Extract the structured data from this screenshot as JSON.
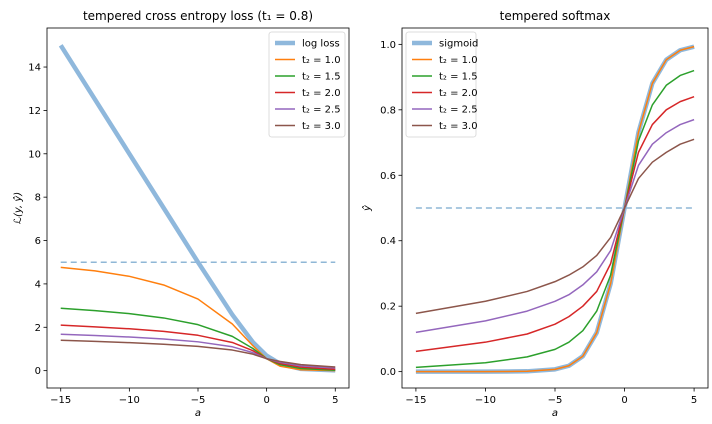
{
  "chart_data": [
    {
      "type": "line",
      "title": "tempered cross entropy loss (t₁ = 0.8)",
      "xlabel": "a",
      "ylabel": "ℒ(y, ŷ)",
      "xlim": [
        -16.0,
        6.0
      ],
      "ylim": [
        -0.8,
        15.8
      ],
      "xticks": [
        -15,
        -10,
        -5,
        0,
        5
      ],
      "yticks": [
        0,
        2,
        4,
        6,
        8,
        10,
        12,
        14
      ],
      "legend_position": "top-right",
      "reference_line": {
        "y": 5.0,
        "x_range": [
          -15,
          5
        ],
        "style": "dashed",
        "color": "#8fb7d6"
      },
      "series": [
        {
          "name": "log loss",
          "color": "#8fb8dc",
          "width": 4.5,
          "x": [
            -15,
            -12.5,
            -10,
            -7.5,
            -5,
            -2.5,
            -1,
            0,
            1,
            2.5,
            5
          ],
          "y": [
            15.0,
            12.5,
            10.0,
            7.5,
            5.0,
            2.58,
            1.31,
            0.69,
            0.31,
            0.08,
            0.01
          ]
        },
        {
          "name": "t₂ = 1.0",
          "color": "#ff7f0e",
          "width": 1.5,
          "x": [
            -15,
            -12.5,
            -10,
            -7.5,
            -5,
            -2.5,
            -1,
            0,
            1,
            2.5,
            5
          ],
          "y": [
            4.76,
            4.6,
            4.35,
            3.95,
            3.3,
            2.15,
            1.15,
            0.55,
            0.2,
            0.04,
            0.0
          ]
        },
        {
          "name": "t₂ = 1.5",
          "color": "#2ca02c",
          "width": 1.5,
          "x": [
            -15,
            -12.5,
            -10,
            -7.5,
            -5,
            -2.5,
            -1,
            0,
            1,
            2.5,
            5
          ],
          "y": [
            2.88,
            2.77,
            2.63,
            2.43,
            2.12,
            1.58,
            1.02,
            0.55,
            0.27,
            0.1,
            0.02
          ]
        },
        {
          "name": "t₂ = 2.0",
          "color": "#d62728",
          "width": 1.5,
          "x": [
            -15,
            -12.5,
            -10,
            -7.5,
            -5,
            -2.5,
            -1,
            0,
            1,
            2.5,
            5
          ],
          "y": [
            2.1,
            2.02,
            1.93,
            1.81,
            1.63,
            1.3,
            0.92,
            0.55,
            0.33,
            0.16,
            0.06
          ]
        },
        {
          "name": "t₂ = 2.5",
          "color": "#9467bd",
          "width": 1.5,
          "x": [
            -15,
            -12.5,
            -10,
            -7.5,
            -5,
            -2.5,
            -1,
            0,
            1,
            2.5,
            5
          ],
          "y": [
            1.68,
            1.62,
            1.55,
            1.46,
            1.33,
            1.1,
            0.83,
            0.55,
            0.38,
            0.22,
            0.12
          ]
        },
        {
          "name": "t₂ = 3.0",
          "color": "#8c564b",
          "width": 1.5,
          "x": [
            -15,
            -12.5,
            -10,
            -7.5,
            -5,
            -2.5,
            -1,
            0,
            1,
            2.5,
            5
          ],
          "y": [
            1.4,
            1.35,
            1.29,
            1.22,
            1.12,
            0.95,
            0.76,
            0.55,
            0.42,
            0.28,
            0.17
          ]
        }
      ]
    },
    {
      "type": "line",
      "title": "tempered softmax",
      "xlabel": "a",
      "ylabel": "ŷ",
      "xlim": [
        -16.0,
        6.0
      ],
      "ylim": [
        -0.05,
        1.05
      ],
      "xticks": [
        -15,
        -10,
        -5,
        0,
        5
      ],
      "yticks": [
        0.0,
        0.2,
        0.4,
        0.6,
        0.8,
        1.0
      ],
      "legend_position": "top-left",
      "reference_line": {
        "y": 0.5,
        "x_range": [
          -15,
          5
        ],
        "style": "dashed",
        "color": "#8fb7d6"
      },
      "series": [
        {
          "name": "sigmoid",
          "color": "#8fb8dc",
          "width": 4.5,
          "x": [
            -15,
            -10,
            -7,
            -5,
            -4,
            -3,
            -2,
            -1,
            0,
            1,
            2,
            3,
            4,
            5
          ],
          "y": [
            0.0,
            0.0,
            0.001,
            0.007,
            0.018,
            0.047,
            0.119,
            0.269,
            0.5,
            0.731,
            0.881,
            0.953,
            0.982,
            0.993
          ]
        },
        {
          "name": "t₂ = 1.0",
          "color": "#ff7f0e",
          "width": 1.5,
          "x": [
            -15,
            -10,
            -7,
            -5,
            -4,
            -3,
            -2,
            -1,
            0,
            1,
            2,
            3,
            4,
            5
          ],
          "y": [
            0.0,
            0.0,
            0.001,
            0.007,
            0.018,
            0.047,
            0.119,
            0.269,
            0.5,
            0.731,
            0.881,
            0.953,
            0.982,
            0.993
          ]
        },
        {
          "name": "t₂ = 1.5",
          "color": "#2ca02c",
          "width": 1.5,
          "x": [
            -15,
            -10,
            -7,
            -5,
            -4,
            -3,
            -2,
            -1,
            0,
            1,
            2,
            3,
            4,
            5
          ],
          "y": [
            0.013,
            0.027,
            0.045,
            0.068,
            0.09,
            0.125,
            0.185,
            0.295,
            0.5,
            0.705,
            0.815,
            0.875,
            0.905,
            0.92
          ]
        },
        {
          "name": "t₂ = 2.0",
          "color": "#d62728",
          "width": 1.5,
          "x": [
            -15,
            -10,
            -7,
            -5,
            -4,
            -3,
            -2,
            -1,
            0,
            1,
            2,
            3,
            4,
            5
          ],
          "y": [
            0.062,
            0.09,
            0.115,
            0.145,
            0.168,
            0.2,
            0.245,
            0.33,
            0.5,
            0.67,
            0.755,
            0.8,
            0.825,
            0.84
          ]
        },
        {
          "name": "t₂ = 2.5",
          "color": "#9467bd",
          "width": 1.5,
          "x": [
            -15,
            -10,
            -7,
            -5,
            -4,
            -3,
            -2,
            -1,
            0,
            1,
            2,
            3,
            4,
            5
          ],
          "y": [
            0.12,
            0.155,
            0.185,
            0.215,
            0.235,
            0.265,
            0.305,
            0.37,
            0.5,
            0.63,
            0.695,
            0.73,
            0.755,
            0.77
          ]
        },
        {
          "name": "t₂ = 3.0",
          "color": "#8c564b",
          "width": 1.5,
          "x": [
            -15,
            -10,
            -7,
            -5,
            -4,
            -3,
            -2,
            -1,
            0,
            1,
            2,
            3,
            4,
            5
          ],
          "y": [
            0.178,
            0.215,
            0.245,
            0.275,
            0.295,
            0.32,
            0.355,
            0.41,
            0.5,
            0.59,
            0.64,
            0.67,
            0.695,
            0.71
          ]
        }
      ]
    }
  ]
}
